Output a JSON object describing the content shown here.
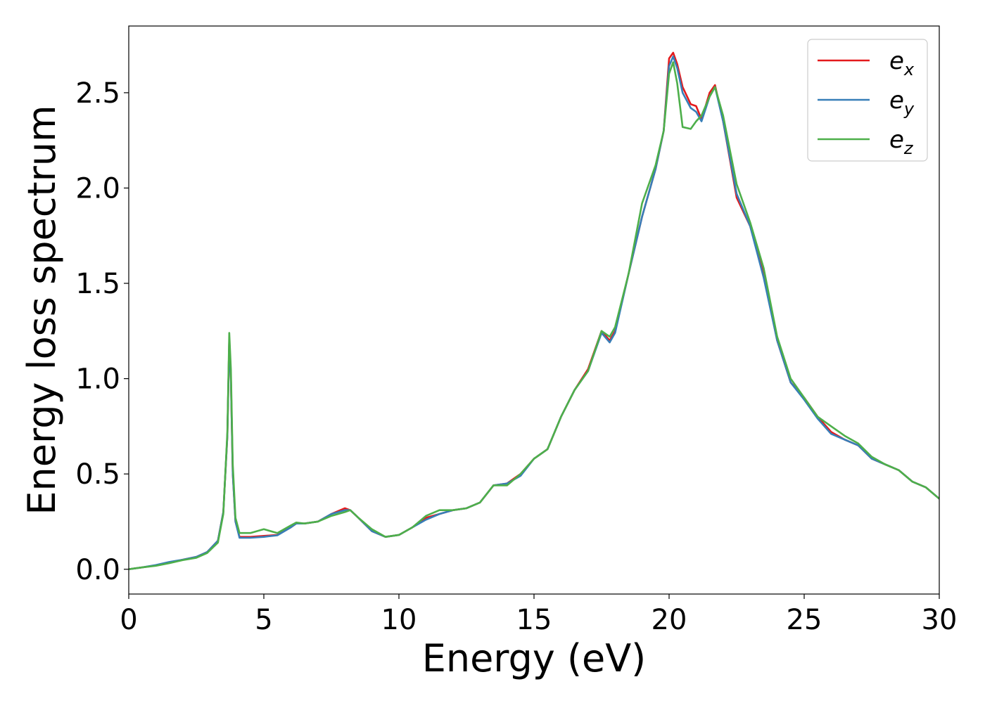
{
  "chart_data": {
    "type": "line",
    "xlabel": "Energy (eV)",
    "ylabel": "Energy loss spectrum",
    "xlim": [
      0,
      30
    ],
    "ylim": [
      -0.13,
      2.85
    ],
    "xticks": [
      0,
      5,
      10,
      15,
      20,
      25,
      30
    ],
    "yticks": [
      0.0,
      0.5,
      1.0,
      1.5,
      2.0,
      2.5
    ],
    "xtick_labels": [
      "0",
      "5",
      "10",
      "15",
      "20",
      "25",
      "30"
    ],
    "ytick_labels": [
      "0.0",
      "0.5",
      "1.0",
      "1.5",
      "2.0",
      "2.5"
    ],
    "grid": false,
    "legend_position": "top-right",
    "series": [
      {
        "name": "e_x",
        "legend_base": "e",
        "legend_sub": "x",
        "color": "#e41a1c",
        "x": [
          0,
          0.5,
          1,
          1.5,
          2,
          2.5,
          2.9,
          3.3,
          3.5,
          3.65,
          3.72,
          3.78,
          3.85,
          3.95,
          4.1,
          4.5,
          5,
          5.5,
          6,
          6.2,
          6.5,
          7,
          7.5,
          8,
          8.2,
          8.5,
          9,
          9.5,
          10,
          10.5,
          11,
          11.5,
          12,
          12.5,
          13,
          13.5,
          14,
          14.5,
          15,
          15.5,
          16,
          16.5,
          17,
          17.5,
          17.8,
          18,
          18.5,
          19,
          19.5,
          19.8,
          20,
          20.15,
          20.3,
          20.5,
          20.8,
          21,
          21.2,
          21.5,
          21.7,
          22,
          22.5,
          23,
          23.5,
          24,
          24.5,
          25,
          25.5,
          26,
          26.5,
          27,
          27.5,
          28,
          28.5,
          29,
          29.5,
          30
        ],
        "y": [
          0,
          0.01,
          0.02,
          0.035,
          0.05,
          0.065,
          0.09,
          0.15,
          0.3,
          0.7,
          1.2,
          1.0,
          0.5,
          0.25,
          0.17,
          0.17,
          0.175,
          0.18,
          0.22,
          0.24,
          0.24,
          0.25,
          0.29,
          0.32,
          0.31,
          0.27,
          0.2,
          0.17,
          0.18,
          0.22,
          0.27,
          0.29,
          0.31,
          0.32,
          0.35,
          0.44,
          0.45,
          0.5,
          0.58,
          0.63,
          0.8,
          0.94,
          1.05,
          1.25,
          1.2,
          1.25,
          1.55,
          1.85,
          2.1,
          2.3,
          2.68,
          2.71,
          2.65,
          2.53,
          2.44,
          2.43,
          2.36,
          2.5,
          2.54,
          2.35,
          1.95,
          1.8,
          1.55,
          1.2,
          0.98,
          0.9,
          0.8,
          0.72,
          0.68,
          0.65,
          0.58,
          0.55,
          0.52,
          0.46,
          0.43,
          0.37
        ]
      },
      {
        "name": "e_y",
        "legend_base": "e",
        "legend_sub": "y",
        "color": "#377eb8",
        "x": [
          0,
          0.5,
          1,
          1.5,
          2,
          2.5,
          2.9,
          3.3,
          3.5,
          3.65,
          3.72,
          3.78,
          3.85,
          3.95,
          4.1,
          4.5,
          5,
          5.5,
          6,
          6.2,
          6.5,
          7,
          7.5,
          8,
          8.2,
          8.5,
          9,
          9.5,
          10,
          10.5,
          11,
          11.5,
          12,
          12.5,
          13,
          13.5,
          14,
          14.5,
          15,
          15.5,
          16,
          16.5,
          17,
          17.5,
          17.8,
          18,
          18.5,
          19,
          19.5,
          19.8,
          20,
          20.15,
          20.3,
          20.5,
          20.8,
          21,
          21.2,
          21.5,
          21.7,
          22,
          22.5,
          23,
          23.5,
          24,
          24.5,
          25,
          25.5,
          26,
          26.5,
          27,
          27.5,
          28,
          28.5,
          29,
          29.5,
          30
        ],
        "y": [
          0,
          0.01,
          0.022,
          0.038,
          0.05,
          0.065,
          0.09,
          0.15,
          0.3,
          0.7,
          1.2,
          1.0,
          0.5,
          0.25,
          0.165,
          0.165,
          0.17,
          0.178,
          0.22,
          0.24,
          0.24,
          0.25,
          0.29,
          0.31,
          0.31,
          0.27,
          0.2,
          0.17,
          0.18,
          0.22,
          0.26,
          0.29,
          0.31,
          0.32,
          0.35,
          0.44,
          0.45,
          0.49,
          0.58,
          0.63,
          0.8,
          0.94,
          1.04,
          1.24,
          1.19,
          1.24,
          1.55,
          1.85,
          2.1,
          2.3,
          2.64,
          2.69,
          2.63,
          2.5,
          2.42,
          2.4,
          2.35,
          2.48,
          2.53,
          2.35,
          1.97,
          1.8,
          1.53,
          1.2,
          0.98,
          0.89,
          0.79,
          0.71,
          0.68,
          0.65,
          0.58,
          0.55,
          0.52,
          0.46,
          0.43,
          0.37
        ]
      },
      {
        "name": "e_z",
        "legend_base": "e",
        "legend_sub": "z",
        "color": "#4daf4a",
        "x": [
          0,
          0.5,
          1,
          1.5,
          2,
          2.5,
          2.9,
          3.3,
          3.5,
          3.65,
          3.72,
          3.78,
          3.85,
          3.95,
          4.1,
          4.5,
          5,
          5.5,
          6,
          6.2,
          6.5,
          7,
          7.5,
          8,
          8.2,
          8.5,
          9,
          9.5,
          10,
          10.5,
          11,
          11.5,
          12,
          12.5,
          13,
          13.5,
          14,
          14.5,
          15,
          15.5,
          16,
          16.5,
          17,
          17.5,
          17.8,
          18,
          18.5,
          19,
          19.5,
          19.8,
          20,
          20.15,
          20.3,
          20.5,
          20.8,
          21,
          21.2,
          21.5,
          21.7,
          22,
          22.5,
          23,
          23.5,
          24,
          24.5,
          25,
          25.5,
          26,
          26.5,
          27,
          27.5,
          28,
          28.5,
          29,
          29.5,
          30
        ],
        "y": [
          0,
          0.01,
          0.018,
          0.032,
          0.048,
          0.06,
          0.085,
          0.14,
          0.29,
          0.72,
          1.24,
          1.05,
          0.55,
          0.27,
          0.19,
          0.19,
          0.21,
          0.19,
          0.23,
          0.245,
          0.24,
          0.25,
          0.28,
          0.3,
          0.31,
          0.27,
          0.21,
          0.17,
          0.18,
          0.22,
          0.28,
          0.31,
          0.31,
          0.32,
          0.35,
          0.44,
          0.44,
          0.5,
          0.58,
          0.63,
          0.8,
          0.94,
          1.04,
          1.25,
          1.22,
          1.27,
          1.55,
          1.92,
          2.12,
          2.3,
          2.6,
          2.66,
          2.55,
          2.32,
          2.31,
          2.35,
          2.38,
          2.48,
          2.53,
          2.38,
          2.02,
          1.82,
          1.58,
          1.22,
          1.0,
          0.9,
          0.8,
          0.75,
          0.7,
          0.66,
          0.59,
          0.55,
          0.52,
          0.46,
          0.43,
          0.37
        ]
      }
    ]
  }
}
